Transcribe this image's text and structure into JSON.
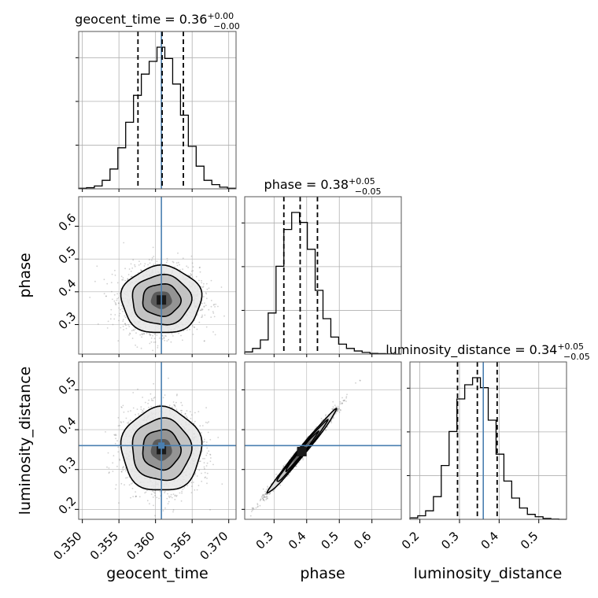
{
  "chart_data": {
    "type": "corner",
    "colors": {
      "truth": "#4a7fb0",
      "hist": "#000000",
      "grid": "#b0b0b0",
      "scatter": "#7a7a7a"
    },
    "truths": {
      "geocent_time": 0.3608,
      "phase": null,
      "luminosity_distance": 0.36
    },
    "parameters": [
      {
        "name": "geocent_time",
        "label": "geocent_time",
        "title_main": "geocent_time = 0.36",
        "title_sup": "+0.00",
        "title_sub": "−0.00",
        "range": [
          0.3495,
          0.371
        ],
        "ticks": [
          0.35,
          0.355,
          0.36,
          0.365,
          0.37
        ],
        "tick_labels": [
          "0.350",
          "0.355",
          "0.360",
          "0.365",
          "0.370"
        ],
        "quantiles": [
          0.3576,
          0.3609,
          0.3638
        ],
        "hist_edges": [
          0.3495,
          0.35057,
          0.35164,
          0.35271,
          0.35378,
          0.35485,
          0.35592,
          0.35699,
          0.35806,
          0.35913,
          0.3602,
          0.36127,
          0.36234,
          0.36341,
          0.36448,
          0.36555,
          0.36662,
          0.36769,
          0.36876,
          0.36983,
          0.3709
        ],
        "hist_counts": [
          0.004,
          0.008,
          0.02,
          0.06,
          0.14,
          0.29,
          0.47,
          0.66,
          0.81,
          0.9,
          1.0,
          0.92,
          0.74,
          0.52,
          0.3,
          0.16,
          0.06,
          0.03,
          0.012,
          0.004
        ]
      },
      {
        "name": "phase",
        "label": "phase",
        "title_main": "phase = 0.38",
        "title_sup": "+0.05",
        "title_sub": "−0.05",
        "range": [
          0.21,
          0.69
        ],
        "ticks": [
          0.3,
          0.4,
          0.5,
          0.6
        ],
        "tick_labels": [
          "0.3",
          "0.4",
          "0.5",
          "0.6"
        ],
        "quantiles": [
          0.33,
          0.38,
          0.433
        ],
        "hist_edges": [
          0.21,
          0.234,
          0.258,
          0.282,
          0.306,
          0.33,
          0.354,
          0.378,
          0.402,
          0.426,
          0.45,
          0.474,
          0.498,
          0.522,
          0.546,
          0.57,
          0.594,
          0.618,
          0.642,
          0.666,
          0.69
        ],
        "hist_counts": [
          0.015,
          0.04,
          0.1,
          0.29,
          0.62,
          0.88,
          1.0,
          0.93,
          0.74,
          0.45,
          0.25,
          0.12,
          0.07,
          0.04,
          0.022,
          0.012,
          0.005,
          0.003,
          0.001,
          0.0
        ]
      },
      {
        "name": "luminosity_distance",
        "label": "luminosity_distance",
        "title_main": "luminosity_distance = 0.34",
        "title_sup": "+0.05",
        "title_sub": "−0.05",
        "range": [
          0.175,
          0.57
        ],
        "ticks": [
          0.2,
          0.3,
          0.4,
          0.5
        ],
        "tick_labels": [
          "0.2",
          "0.3",
          "0.4",
          "0.5"
        ],
        "quantiles": [
          0.295,
          0.345,
          0.395
        ],
        "hist_edges": [
          0.175,
          0.19475,
          0.2145,
          0.23425,
          0.254,
          0.27375,
          0.2935,
          0.31325,
          0.333,
          0.35275,
          0.3725,
          0.39225,
          0.412,
          0.43175,
          0.4515,
          0.47125,
          0.491,
          0.51075,
          0.5305,
          0.55025,
          0.57
        ],
        "hist_counts": [
          0.01,
          0.025,
          0.06,
          0.16,
          0.38,
          0.62,
          0.85,
          0.95,
          1.0,
          0.93,
          0.7,
          0.46,
          0.27,
          0.15,
          0.08,
          0.035,
          0.018,
          0.006,
          0.002,
          0.0
        ]
      }
    ],
    "pairs": [
      {
        "x": "geocent_time",
        "y": "phase",
        "center": [
          0.3608,
          0.375
        ],
        "sd": [
          0.0026,
          0.049
        ],
        "rho": 0.0
      },
      {
        "x": "geocent_time",
        "y": "luminosity_distance",
        "center": [
          0.3608,
          0.35
        ],
        "sd": [
          0.0026,
          0.05
        ],
        "rho": 0.0
      },
      {
        "x": "phase",
        "y": "luminosity_distance",
        "center": [
          0.385,
          0.345
        ],
        "sd": [
          0.05,
          0.05
        ],
        "rho": 0.99
      }
    ]
  }
}
